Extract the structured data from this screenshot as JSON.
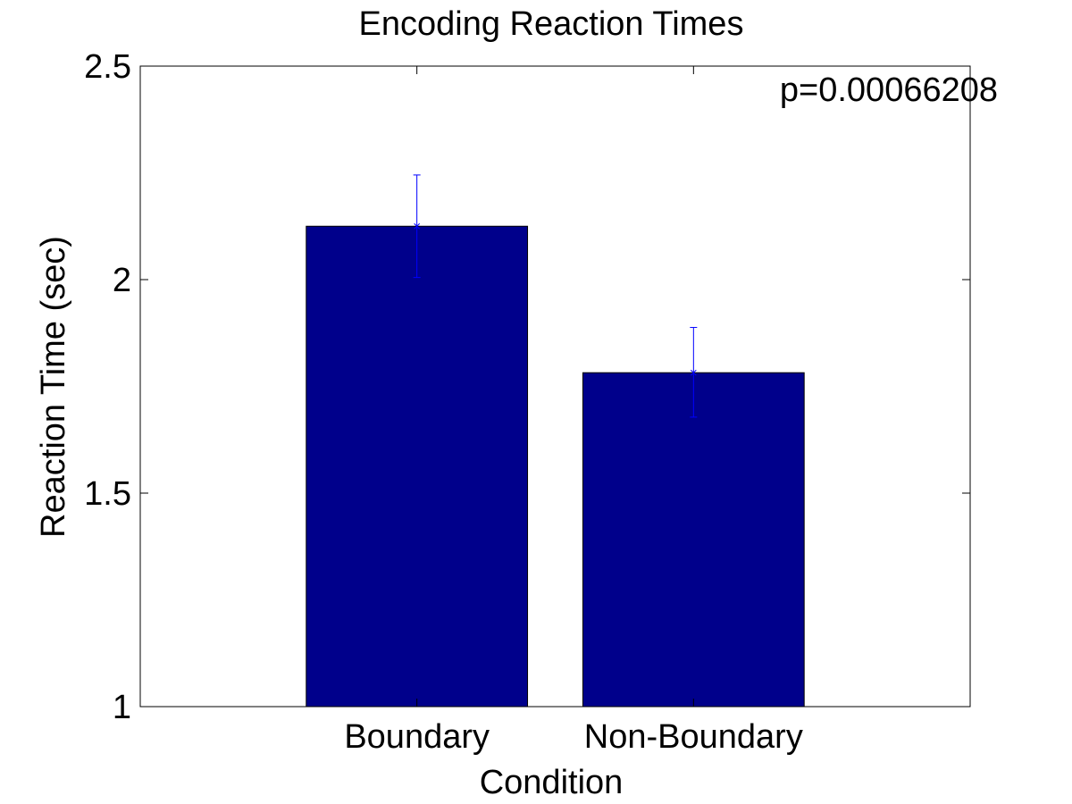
{
  "chart_data": {
    "type": "bar",
    "title": "Encoding Reaction Times",
    "xlabel": "Condition",
    "ylabel": "Reaction Time (sec)",
    "categories": [
      "Boundary",
      "Non-Boundary"
    ],
    "values": [
      2.125,
      1.782
    ],
    "error_low": [
      2.005,
      1.678
    ],
    "error_high": [
      2.245,
      1.888
    ],
    "ylim": [
      1,
      2.5
    ],
    "yticks": [
      1,
      1.5,
      2,
      2.5
    ],
    "ytick_labels": [
      "1",
      "1.5",
      "2",
      "2.5"
    ],
    "annotation": "p=0.00066208",
    "grid": false,
    "bar_color": "#00008B",
    "error_color": "#0000FF"
  }
}
